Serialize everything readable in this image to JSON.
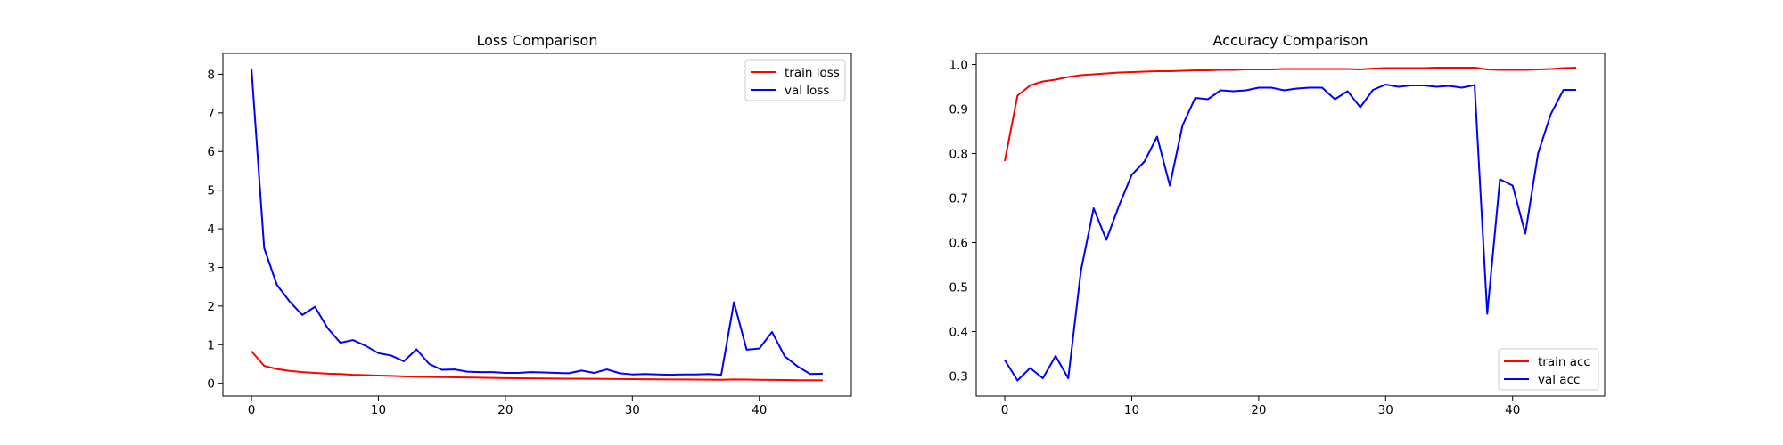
{
  "chart_data": [
    {
      "type": "line",
      "title": "Loss Comparison",
      "xlabel": "",
      "ylabel": "",
      "xlim": [
        -2.25,
        47.25
      ],
      "ylim": [
        -0.33,
        8.54
      ],
      "xticks": [
        0,
        10,
        20,
        30,
        40
      ],
      "yticks": [
        0,
        1,
        2,
        3,
        4,
        5,
        6,
        7,
        8
      ],
      "grid": false,
      "legend": "top-right",
      "series": [
        {
          "name": "train loss",
          "color": "#ff0000",
          "x": [
            0,
            1,
            2,
            3,
            4,
            5,
            6,
            7,
            8,
            9,
            10,
            11,
            12,
            13,
            14,
            15,
            16,
            17,
            18,
            19,
            20,
            21,
            22,
            23,
            24,
            25,
            26,
            27,
            28,
            29,
            30,
            31,
            32,
            33,
            34,
            35,
            36,
            37,
            38,
            39,
            40,
            41,
            42,
            43,
            44,
            45
          ],
          "values": [
            0.83,
            0.45,
            0.37,
            0.32,
            0.29,
            0.27,
            0.25,
            0.24,
            0.22,
            0.21,
            0.2,
            0.19,
            0.18,
            0.17,
            0.165,
            0.16,
            0.155,
            0.15,
            0.145,
            0.14,
            0.135,
            0.13,
            0.128,
            0.125,
            0.122,
            0.12,
            0.118,
            0.115,
            0.113,
            0.11,
            0.108,
            0.105,
            0.102,
            0.1,
            0.098,
            0.095,
            0.093,
            0.09,
            0.1,
            0.095,
            0.09,
            0.088,
            0.085,
            0.08,
            0.078,
            0.075
          ]
        },
        {
          "name": "val loss",
          "color": "#0000ff",
          "x": [
            0,
            1,
            2,
            3,
            4,
            5,
            6,
            7,
            8,
            9,
            10,
            11,
            12,
            13,
            14,
            15,
            16,
            17,
            18,
            19,
            20,
            21,
            22,
            23,
            24,
            25,
            26,
            27,
            28,
            29,
            30,
            31,
            32,
            33,
            34,
            35,
            36,
            37,
            38,
            39,
            40,
            41,
            42,
            43,
            44,
            45
          ],
          "values": [
            8.15,
            3.5,
            2.55,
            2.12,
            1.77,
            1.98,
            1.43,
            1.05,
            1.12,
            0.97,
            0.78,
            0.72,
            0.57,
            0.88,
            0.5,
            0.35,
            0.36,
            0.3,
            0.29,
            0.29,
            0.27,
            0.27,
            0.29,
            0.28,
            0.27,
            0.26,
            0.33,
            0.27,
            0.36,
            0.26,
            0.23,
            0.24,
            0.23,
            0.22,
            0.23,
            0.23,
            0.24,
            0.22,
            2.1,
            0.87,
            0.9,
            1.33,
            0.7,
            0.44,
            0.24,
            0.25
          ]
        }
      ]
    },
    {
      "type": "line",
      "title": "Accuracy Comparison",
      "xlabel": "",
      "ylabel": "",
      "xlim": [
        -2.25,
        47.25
      ],
      "ylim": [
        0.255,
        1.025
      ],
      "xticks": [
        0,
        10,
        20,
        30,
        40
      ],
      "yticks": [
        0.3,
        0.4,
        0.5,
        0.6,
        0.7,
        0.8,
        0.9,
        1.0
      ],
      "yticklabels": [
        "0.3",
        "0.4",
        "0.5",
        "0.6",
        "0.7",
        "0.8",
        "0.9",
        "1.0"
      ],
      "grid": false,
      "legend": "bottom-right",
      "series": [
        {
          "name": "train acc",
          "color": "#ff0000",
          "x": [
            0,
            1,
            2,
            3,
            4,
            5,
            6,
            7,
            8,
            9,
            10,
            11,
            12,
            13,
            14,
            15,
            16,
            17,
            18,
            19,
            20,
            21,
            22,
            23,
            24,
            25,
            26,
            27,
            28,
            29,
            30,
            31,
            32,
            33,
            34,
            35,
            36,
            37,
            38,
            39,
            40,
            41,
            42,
            43,
            44,
            45
          ],
          "values": [
            0.783,
            0.93,
            0.953,
            0.962,
            0.966,
            0.972,
            0.976,
            0.978,
            0.98,
            0.982,
            0.983,
            0.984,
            0.985,
            0.985,
            0.986,
            0.987,
            0.987,
            0.988,
            0.988,
            0.989,
            0.989,
            0.989,
            0.99,
            0.99,
            0.99,
            0.99,
            0.99,
            0.99,
            0.989,
            0.991,
            0.992,
            0.992,
            0.992,
            0.992,
            0.993,
            0.993,
            0.993,
            0.993,
            0.989,
            0.988,
            0.988,
            0.988,
            0.989,
            0.99,
            0.992,
            0.993
          ]
        },
        {
          "name": "val acc",
          "color": "#0000ff",
          "x": [
            0,
            1,
            2,
            3,
            4,
            5,
            6,
            7,
            8,
            9,
            10,
            11,
            12,
            13,
            14,
            15,
            16,
            17,
            18,
            19,
            20,
            21,
            22,
            23,
            24,
            25,
            26,
            27,
            28,
            29,
            30,
            31,
            32,
            33,
            34,
            35,
            36,
            37,
            38,
            39,
            40,
            41,
            42,
            43,
            44,
            45
          ],
          "values": [
            0.336,
            0.29,
            0.318,
            0.295,
            0.345,
            0.295,
            0.537,
            0.677,
            0.606,
            0.683,
            0.752,
            0.782,
            0.838,
            0.728,
            0.863,
            0.925,
            0.922,
            0.942,
            0.94,
            0.942,
            0.948,
            0.948,
            0.942,
            0.946,
            0.948,
            0.948,
            0.922,
            0.94,
            0.904,
            0.943,
            0.955,
            0.95,
            0.953,
            0.953,
            0.95,
            0.952,
            0.948,
            0.954,
            0.44,
            0.742,
            0.728,
            0.62,
            0.8,
            0.888,
            0.943,
            0.943
          ]
        }
      ]
    }
  ]
}
